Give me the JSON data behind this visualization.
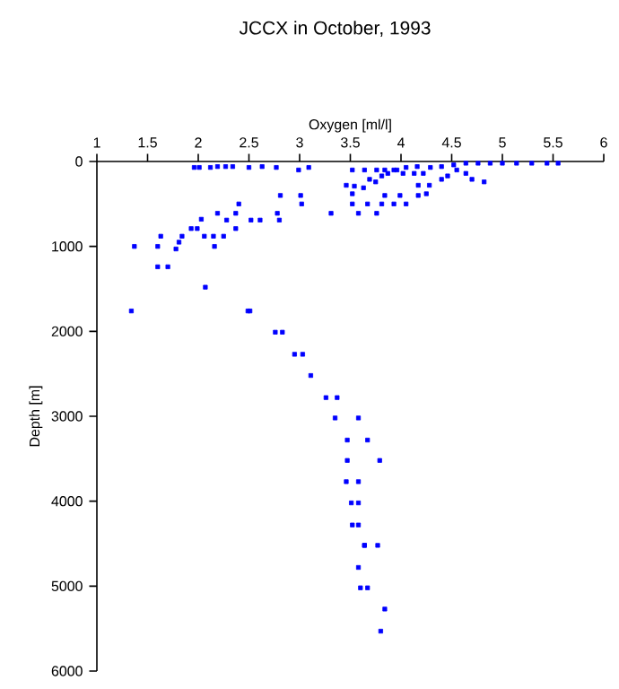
{
  "chart_data": {
    "type": "scatter",
    "title": "JCCX in October, 1993",
    "xlabel": "Oxygen [ml/l]",
    "ylabel": "Depth [m]",
    "marker": "square",
    "color": "#0000ff",
    "xlim": [
      1,
      6
    ],
    "ylim": [
      6000,
      0
    ],
    "xticks": [
      1,
      1.5,
      2,
      2.5,
      3,
      3.5,
      4,
      4.5,
      5,
      5.5,
      6
    ],
    "yticks": [
      0,
      1000,
      2000,
      3000,
      4000,
      5000,
      6000
    ],
    "x": [
      1.96,
      2.01,
      2.12,
      2.19,
      2.27,
      2.34,
      2.5,
      2.63,
      2.77,
      2.99,
      3.09,
      3.52,
      3.64,
      3.76,
      3.84,
      3.96,
      4.05,
      4.16,
      4.29,
      4.4,
      4.52,
      4.64,
      4.76,
      4.88,
      5.0,
      5.14,
      5.29,
      5.44,
      5.55,
      4.4,
      4.46,
      4.55,
      4.64,
      4.7,
      4.82,
      4.28,
      4.22,
      4.13,
      4.17,
      4.25,
      4.17,
      3.46,
      3.54,
      3.63,
      3.69,
      3.75,
      3.81,
      3.87,
      3.93,
      4.02,
      3.52,
      3.52,
      3.67,
      3.81,
      3.93,
      4.05,
      3.84,
      3.99,
      3.58,
      3.76,
      3.31,
      2.81,
      2.78,
      2.8,
      3.01,
      3.02,
      2.4,
      2.37,
      2.52,
      2.61,
      2.19,
      2.28,
      2.37,
      2.03,
      1.93,
      1.99,
      2.06,
      2.15,
      2.25,
      1.84,
      1.81,
      1.63,
      1.78,
      1.6,
      1.37,
      2.16,
      1.6,
      1.7,
      2.07,
      1.34,
      2.49,
      2.51,
      2.76,
      2.83,
      2.95,
      3.03,
      3.11,
      3.26,
      3.37,
      3.35,
      3.58,
      3.47,
      3.67,
      3.47,
      3.79,
      3.46,
      3.58,
      3.51,
      3.58,
      3.52,
      3.58,
      3.64,
      3.64,
      3.77,
      3.58,
      3.6,
      3.67,
      3.84,
      3.8
    ],
    "values": [
      70,
      70,
      70,
      60,
      60,
      60,
      70,
      60,
      70,
      100,
      70,
      100,
      100,
      100,
      100,
      100,
      70,
      60,
      70,
      60,
      40,
      20,
      20,
      20,
      20,
      20,
      20,
      20,
      20,
      210,
      170,
      100,
      140,
      210,
      240,
      280,
      140,
      140,
      280,
      380,
      400,
      280,
      290,
      310,
      210,
      240,
      170,
      140,
      100,
      140,
      380,
      500,
      500,
      500,
      500,
      500,
      400,
      400,
      610,
      610,
      610,
      400,
      610,
      690,
      400,
      500,
      500,
      610,
      690,
      690,
      610,
      690,
      790,
      680,
      790,
      790,
      880,
      880,
      880,
      880,
      950,
      880,
      1030,
      1000,
      1000,
      1000,
      1240,
      1240,
      1480,
      1760,
      1760,
      1760,
      2010,
      2010,
      2270,
      2270,
      2520,
      2780,
      2780,
      3020,
      3020,
      3280,
      3280,
      3520,
      3520,
      3770,
      3770,
      4020,
      4020,
      4280,
      4280,
      4520,
      4520,
      4520,
      4780,
      5020,
      5020,
      5270,
      5530
    ]
  }
}
